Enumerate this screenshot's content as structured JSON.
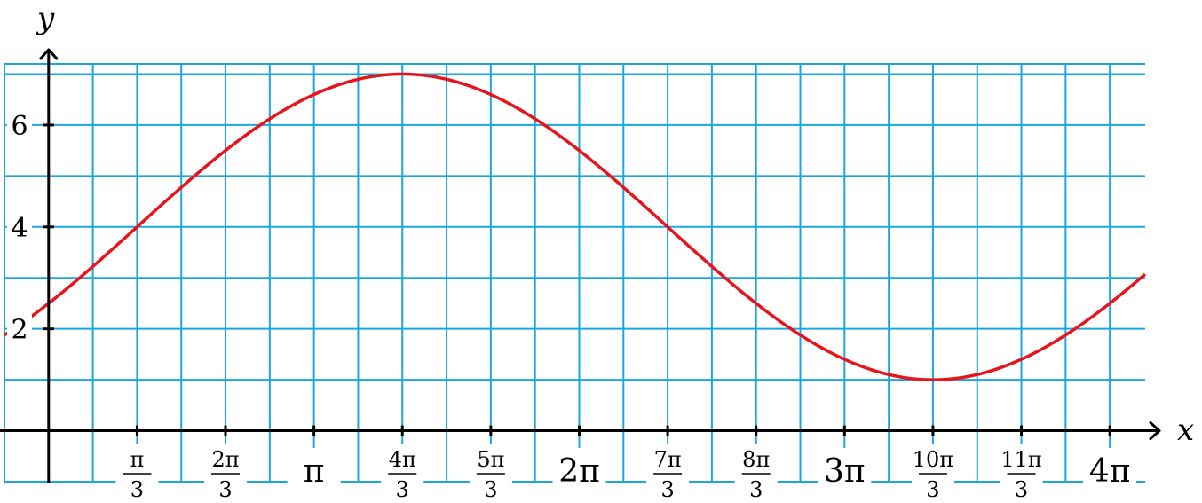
{
  "chart_data": {
    "type": "line",
    "title": "",
    "xlabel": "x",
    "ylabel": "y",
    "xlim": [
      -0.5236,
      12.9852
    ],
    "ylim": [
      -1,
      7.2
    ],
    "grid": true,
    "x_ticks": [
      {
        "value": 1.0472,
        "num": "π",
        "den": "3"
      },
      {
        "value": 2.0944,
        "num": "2π",
        "den": "3"
      },
      {
        "value": 3.1416,
        "text": "π"
      },
      {
        "value": 4.1888,
        "num": "4π",
        "den": "3"
      },
      {
        "value": 5.236,
        "num": "5π",
        "den": "3"
      },
      {
        "value": 6.2832,
        "text": "2π"
      },
      {
        "value": 7.3304,
        "num": "7π",
        "den": "3"
      },
      {
        "value": 8.3776,
        "num": "8π",
        "den": "3"
      },
      {
        "value": 9.4248,
        "text": "3π"
      },
      {
        "value": 10.472,
        "num": "10π",
        "den": "3"
      },
      {
        "value": 11.5192,
        "num": "11π",
        "den": "3"
      },
      {
        "value": 12.5664,
        "text": "4π"
      }
    ],
    "y_ticks": [
      {
        "value": 2,
        "text": "2"
      },
      {
        "value": 4,
        "text": "4"
      },
      {
        "value": 6,
        "text": "6"
      }
    ],
    "series": [
      {
        "function": "y = 4 + 3·sin(x/2 − π/6)",
        "color": "#e8141b",
        "x": [
          -0.5236,
          0,
          1.0472,
          2.0944,
          3.1416,
          4.1888,
          5.236,
          6.2832,
          7.3304,
          8.3776,
          9.4248,
          10.472,
          11.5192,
          12.5664,
          12.9852
        ],
        "y": [
          1.85,
          2.5,
          4.0,
          5.5,
          6.6,
          7.0,
          6.6,
          5.5,
          4.0,
          2.5,
          1.4,
          1.0,
          1.4,
          2.5,
          3.2
        ]
      }
    ]
  }
}
